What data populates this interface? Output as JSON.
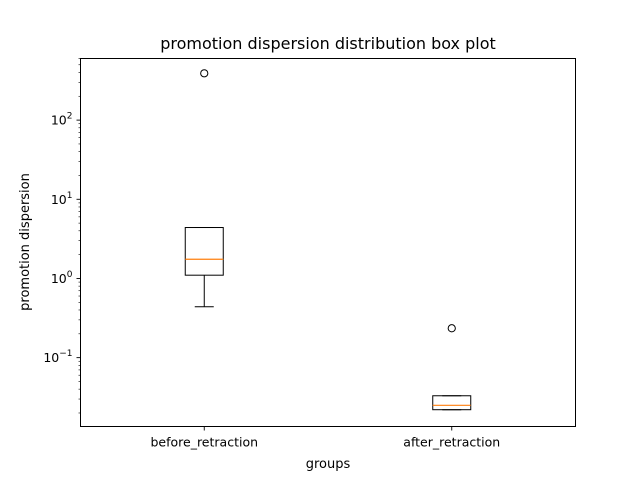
{
  "chart_data": {
    "type": "box",
    "title": "promotion dispersion distribution box plot",
    "xlabel": "groups",
    "ylabel": "promotion dispersion",
    "yscale": "log",
    "ylim": [
      0.0135,
      600
    ],
    "y_ticks": [
      {
        "value": 0.1,
        "base": "10",
        "exp": "−1"
      },
      {
        "value": 1,
        "base": "10",
        "exp": "0"
      },
      {
        "value": 10,
        "base": "10",
        "exp": "1"
      },
      {
        "value": 100,
        "base": "10",
        "exp": "2"
      }
    ],
    "grid": false,
    "categories": [
      "before_retraction",
      "after_retraction"
    ],
    "boxes": [
      {
        "category": "before_retraction",
        "whisker_low": 0.44,
        "q1": 1.1,
        "median": 1.75,
        "q3": 4.4,
        "whisker_high": 4.4,
        "outliers": [
          390
        ]
      },
      {
        "category": "after_retraction",
        "whisker_low": 0.022,
        "q1": 0.022,
        "median": 0.025,
        "q3": 0.033,
        "whisker_high": 0.033,
        "outliers": [
          0.235
        ]
      }
    ],
    "colors": {
      "box": "#000000",
      "median": "#ff7f0e",
      "outlier": "#000000"
    }
  }
}
